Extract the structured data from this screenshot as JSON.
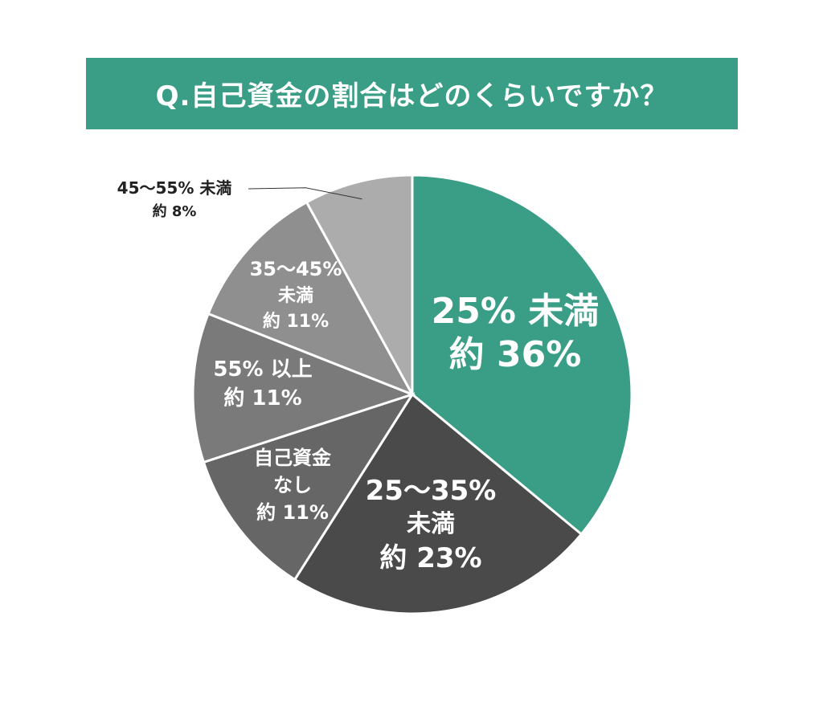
{
  "title": "Q.自己資金の割合はどのくらいですか？",
  "chart_data": {
    "type": "pie",
    "start": "top",
    "direction": "clockwise",
    "slices": [
      {
        "lines": [
          "25% 未満",
          "約 36%"
        ],
        "value": 36,
        "color": "#3a9e86"
      },
      {
        "lines": [
          "25～35%",
          "未満",
          "約 23%"
        ],
        "value": 23,
        "color": "#4a4a4a"
      },
      {
        "lines": [
          "自己資金",
          "なし",
          "約 11%"
        ],
        "value": 11,
        "color": "#666666"
      },
      {
        "lines": [
          "55% 以上",
          "約 11%"
        ],
        "value": 11,
        "color": "#7a7a7a"
      },
      {
        "lines": [
          "35～45%",
          "未満",
          "約 11%"
        ],
        "value": 11,
        "color": "#8f8f8f"
      },
      {
        "lines": [
          "45～55% 未満",
          "約 8%"
        ],
        "value": 8,
        "color": "#acacac"
      }
    ]
  }
}
